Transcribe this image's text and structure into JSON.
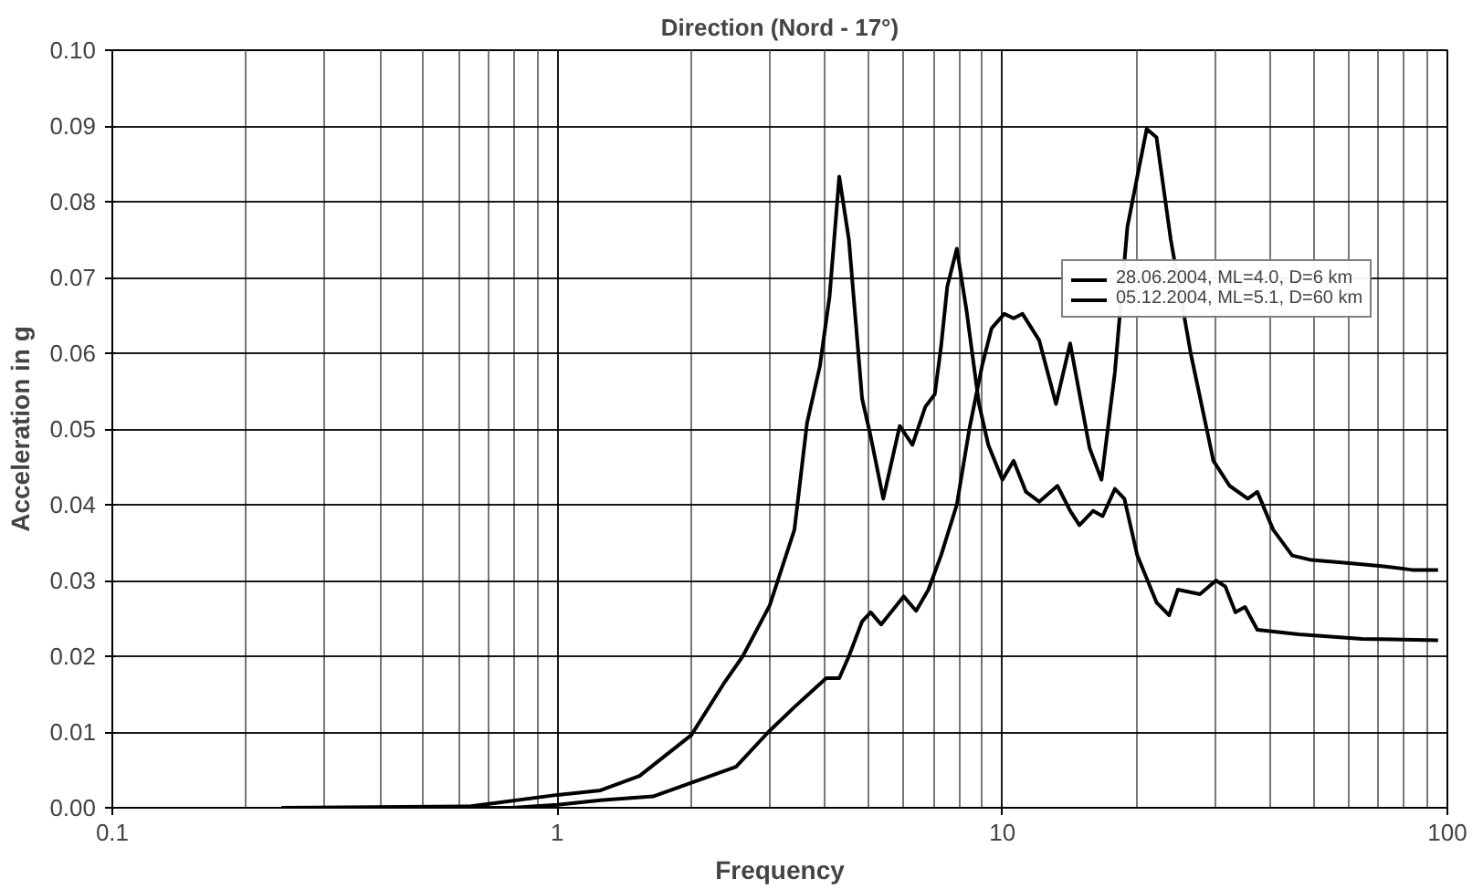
{
  "chart_data": {
    "type": "line",
    "title": "Direction (Nord - 17°)",
    "xlabel": "Frequency",
    "ylabel": "Acceleration in g",
    "log": "x",
    "grid": true,
    "legend": "top right",
    "xlim": [
      0.1,
      100
    ],
    "xticks": [
      0.1,
      1,
      10,
      100
    ],
    "ylim": [
      0,
      0.1
    ],
    "yticks": [
      {
        "value": 0,
        "label": "0.00"
      },
      {
        "value": 0.01,
        "label": "0.01"
      },
      {
        "value": 0.02,
        "label": "0.02"
      },
      {
        "value": 0.03,
        "label": "0.03"
      },
      {
        "value": 0.04,
        "label": "0.04"
      },
      {
        "value": 0.05,
        "label": "0.05"
      },
      {
        "value": 0.06,
        "label": "0.06"
      },
      {
        "value": 0.07,
        "label": "0.07"
      },
      {
        "value": 0.08,
        "label": "0.08"
      },
      {
        "value": 0.09,
        "label": "0.09"
      },
      {
        "value": 0.1,
        "label": "0.10"
      }
    ],
    "series": [
      {
        "name": "28.06.2004, ML=4.0, D=6 km",
        "color": "#000000",
        "x": [
          0.24,
          0.79,
          1.0,
          1.25,
          1.64,
          2.0,
          2.52,
          2.98,
          3.41,
          4.02,
          4.3,
          4.52,
          4.84,
          5.06,
          5.34,
          6.0,
          6.4,
          6.82,
          7.28,
          7.9,
          8.43,
          9.0,
          9.46,
          10.1,
          10.6,
          11.1,
          12.1,
          13.2,
          14.2,
          15.7,
          16.7,
          17.9,
          19.1,
          21.1,
          22.2,
          23.9,
          26.5,
          29.8,
          32.4,
          35.6,
          37.4,
          40.6,
          44.8,
          49.5,
          60.2,
          71.1,
          83.4,
          95.3
        ],
        "values": [
          0,
          0,
          0.0004,
          0.001,
          0.0015,
          0.0033,
          0.0054,
          0.01,
          0.0133,
          0.0171,
          0.0171,
          0.02,
          0.0246,
          0.0258,
          0.0242,
          0.0279,
          0.026,
          0.0288,
          0.0333,
          0.04,
          0.05,
          0.0583,
          0.0633,
          0.0652,
          0.0646,
          0.0652,
          0.0617,
          0.0533,
          0.0613,
          0.0475,
          0.0433,
          0.0575,
          0.0767,
          0.0896,
          0.0885,
          0.075,
          0.06,
          0.0458,
          0.0425,
          0.0408,
          0.0417,
          0.0367,
          0.0333,
          0.0327,
          0.0323,
          0.0319,
          0.0314,
          0.0314
        ]
      },
      {
        "name": "05.12.2004, ML=5.1, D=60 km",
        "color": "#000000",
        "x": [
          0.24,
          0.64,
          1.0,
          1.25,
          1.53,
          2.0,
          2.36,
          2.61,
          3.0,
          3.41,
          3.64,
          3.89,
          4.09,
          4.3,
          4.52,
          4.84,
          5.06,
          5.4,
          5.88,
          6.28,
          6.71,
          7.05,
          7.28,
          7.52,
          7.9,
          8.3,
          8.86,
          9.3,
          10.0,
          10.6,
          11.3,
          12.1,
          13.3,
          14.2,
          14.9,
          16.0,
          16.8,
          17.9,
          18.8,
          20.1,
          22.2,
          23.7,
          24.8,
          27.8,
          30.2,
          31.7,
          33.4,
          35.1,
          37.4,
          46.4,
          64.3,
          95.3
        ],
        "values": [
          0,
          0.0002,
          0.0017,
          0.0023,
          0.0042,
          0.0096,
          0.0163,
          0.02,
          0.0267,
          0.0367,
          0.0508,
          0.0583,
          0.0675,
          0.0833,
          0.075,
          0.054,
          0.049,
          0.0408,
          0.0504,
          0.0479,
          0.0529,
          0.0546,
          0.0608,
          0.0688,
          0.0738,
          0.0658,
          0.0533,
          0.0479,
          0.0433,
          0.0458,
          0.0417,
          0.0404,
          0.0425,
          0.0392,
          0.0373,
          0.0392,
          0.0385,
          0.0421,
          0.0408,
          0.0333,
          0.0271,
          0.0254,
          0.0288,
          0.0282,
          0.03,
          0.0292,
          0.0258,
          0.0265,
          0.0235,
          0.0229,
          0.0223,
          0.0221
        ]
      }
    ]
  }
}
